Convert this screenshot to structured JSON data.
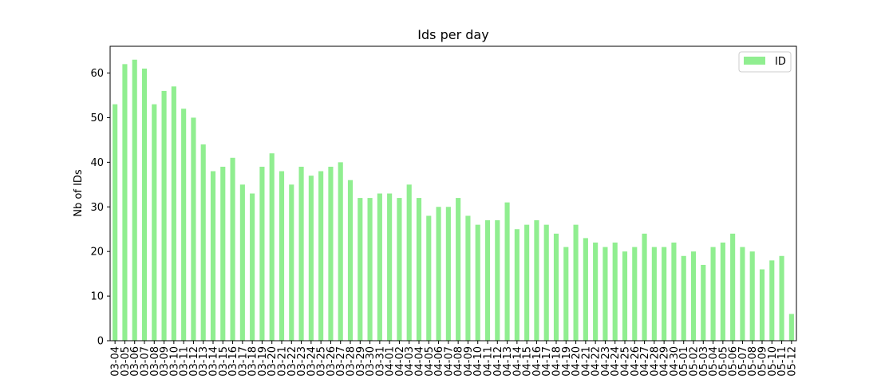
{
  "chart_data": {
    "type": "bar",
    "title": "Ids per day",
    "xlabel": "",
    "ylabel": "Nb of IDs",
    "ylim": [
      0,
      66
    ],
    "yticks": [
      0,
      10,
      20,
      30,
      40,
      50,
      60
    ],
    "grid": false,
    "legend": {
      "placement": "top-right"
    },
    "categories": [
      "03-04",
      "03-05",
      "03-06",
      "03-07",
      "03-08",
      "03-09",
      "03-10",
      "03-11",
      "03-12",
      "03-13",
      "03-14",
      "03-15",
      "03-16",
      "03-17",
      "03-18",
      "03-19",
      "03-20",
      "03-21",
      "03-22",
      "03-23",
      "03-24",
      "03-25",
      "03-26",
      "03-27",
      "03-28",
      "03-29",
      "03-30",
      "03-31",
      "04-01",
      "04-02",
      "04-03",
      "04-04",
      "04-05",
      "04-06",
      "04-07",
      "04-08",
      "04-09",
      "04-10",
      "04-11",
      "04-12",
      "04-13",
      "04-14",
      "04-15",
      "04-16",
      "04-17",
      "04-18",
      "04-19",
      "04-20",
      "04-21",
      "04-22",
      "04-23",
      "04-24",
      "04-25",
      "04-26",
      "04-27",
      "04-28",
      "04-29",
      "04-30",
      "05-01",
      "05-02",
      "05-03",
      "05-04",
      "05-05",
      "05-06",
      "05-07",
      "05-08",
      "05-09",
      "05-10",
      "05-11",
      "05-12"
    ],
    "series": [
      {
        "name": "ID",
        "color": "#90ee90",
        "values": [
          53,
          62,
          63,
          61,
          53,
          56,
          57,
          52,
          50,
          44,
          38,
          39,
          41,
          35,
          33,
          39,
          42,
          38,
          35,
          39,
          37,
          38,
          39,
          40,
          36,
          32,
          32,
          33,
          33,
          32,
          35,
          32,
          28,
          30,
          30,
          32,
          28,
          26,
          27,
          27,
          31,
          25,
          26,
          27,
          26,
          24,
          21,
          26,
          23,
          22,
          21,
          22,
          20,
          21,
          24,
          21,
          21,
          22,
          19,
          20,
          17,
          21,
          22,
          24,
          21,
          20,
          16,
          18,
          19,
          6
        ]
      }
    ]
  }
}
